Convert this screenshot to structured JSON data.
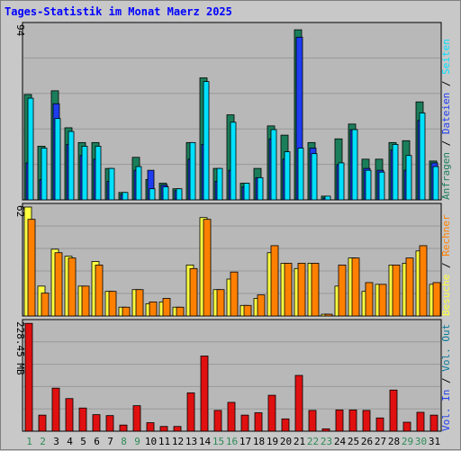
{
  "chart_data": {
    "type": "bar",
    "title": "Tages-Statistik im Monat Maerz 2025",
    "categories": [
      "1",
      "2",
      "3",
      "4",
      "5",
      "6",
      "7",
      "8",
      "9",
      "10",
      "11",
      "12",
      "13",
      "14",
      "15",
      "16",
      "17",
      "18",
      "19",
      "20",
      "21",
      "22",
      "23",
      "24",
      "25",
      "26",
      "27",
      "28",
      "29",
      "30",
      "31"
    ],
    "weekend_days": [
      1,
      2,
      8,
      9,
      15,
      16,
      22,
      23,
      29,
      30
    ],
    "colors": {
      "anfragen": "#1b7e5a",
      "dateien": "#1e3cf0",
      "seiten": "#00e0ff",
      "besuche": "#ffff40",
      "rechner": "#ff8000",
      "volume": "#e01010",
      "title": "#0000ff",
      "weekend": "#2e8b57",
      "weekday": "#000000",
      "plot_bg": "#b8b8b8",
      "grid": "#999999"
    },
    "panels": [
      {
        "name": "hits",
        "max_label": "94",
        "ymax": 94,
        "series": [
          {
            "name": "Anfragen",
            "values": [
              57,
              29,
              59,
              39,
              31,
              31,
              17,
              4,
              23,
              11,
              9,
              6,
              31,
              66,
              17,
              46,
              9,
              17,
              40,
              35,
              92,
              31,
              2,
              33,
              41,
              22,
              22,
              31,
              32,
              53,
              21
            ]
          },
          {
            "name": "Dateien",
            "values": [
              20,
              11,
              52,
              30,
              24,
              22,
              10,
              3,
              16,
              16,
              8,
              5,
              22,
              30,
              10,
              16,
              7,
              12,
              33,
              22,
              88,
              28,
              1,
              19,
              38,
              17,
              16,
              27,
              16,
              43,
              20
            ]
          },
          {
            "name": "Seiten",
            "values": [
              55,
              28,
              44,
              37,
              29,
              29,
              17,
              4,
              18,
              6,
              7,
              6,
              31,
              64,
              17,
              42,
              9,
              12,
              38,
              26,
              28,
              25,
              2,
              20,
              38,
              16,
              15,
              30,
              24,
              47,
              18
            ]
          }
        ],
        "legend": [
          {
            "label": "Anfragen",
            "color": "#1b7e5a"
          },
          {
            "label": "Dateien",
            "color": "#1e3cf0"
          },
          {
            "label": "Seiten",
            "color": "#00e0ff"
          }
        ],
        "legend_sep": " / "
      },
      {
        "name": "visits",
        "max_label": "62",
        "ymax": 62,
        "series": [
          {
            "name": "Besuche",
            "values": [
              62,
              17,
              38,
              34,
              17,
              31,
              14,
              5,
              15,
              7,
              8,
              5,
              29,
              56,
              15,
              21,
              6,
              10,
              36,
              30,
              27,
              30,
              1,
              17,
              33,
              14,
              18,
              29,
              30,
              37,
              18
            ]
          },
          {
            "name": "Rechner",
            "values": [
              55,
              13,
              36,
              33,
              17,
              29,
              14,
              5,
              15,
              8,
              10,
              5,
              27,
              55,
              15,
              25,
              6,
              12,
              40,
              30,
              30,
              30,
              1,
              29,
              33,
              19,
              18,
              29,
              33,
              40,
              19
            ]
          }
        ],
        "legend": [
          {
            "label": "Besuche",
            "color": "#ffff40"
          },
          {
            "label": "Rechner",
            "color": "#ff8000"
          }
        ],
        "legend_sep": " / "
      },
      {
        "name": "volume",
        "max_label": "228.45 MB",
        "ymax": 228.45,
        "series": [
          {
            "name": "Vol. In",
            "values": [
              228,
              34,
              91,
              69,
              49,
              35,
              33,
              13,
              54,
              18,
              10,
              10,
              81,
              159,
              44,
              61,
              34,
              39,
              76,
              26,
              118,
              44,
              5,
              45,
              45,
              44,
              28,
              87,
              19,
              40,
              34
            ]
          }
        ],
        "legend": [
          {
            "label": "Vol. In",
            "color": "#1e3cf0"
          },
          {
            "label": "Vol. Out",
            "color": "#0a7a9a"
          }
        ],
        "legend_sep": " / "
      }
    ]
  }
}
